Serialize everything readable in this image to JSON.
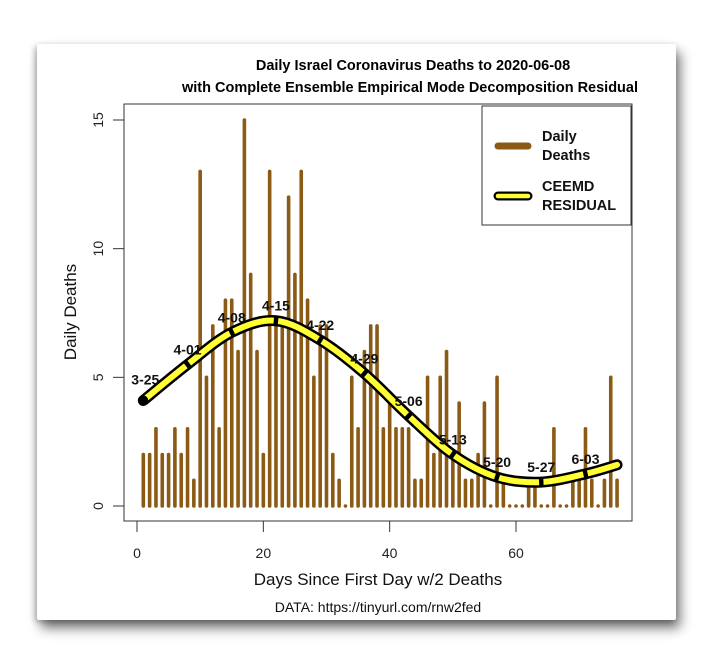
{
  "chart_data": {
    "type": "bar",
    "title": "Daily Israel Coronavirus Deaths to 2020-06-08",
    "subtitle": "with Complete Ensemble Empirical Mode Decomposition Residual",
    "xlabel": "Days Since First Day w/2 Deaths",
    "ylabel": "Daily Deaths",
    "source": "DATA: https://tinyurl.com/rnw2fed",
    "xlim": [
      0,
      78
    ],
    "ylim": [
      0,
      15
    ],
    "x_ticks": [
      0,
      20,
      40,
      60
    ],
    "y_ticks": [
      0,
      5,
      10,
      15
    ],
    "grid": false,
    "legend_position": "top-right",
    "colors": {
      "bars": "#8B5A14",
      "residual_fill": "#FFFF33",
      "residual_outline": "#000000"
    },
    "series": [
      {
        "name": "Daily Deaths",
        "legend_label": [
          "Daily",
          "Deaths"
        ],
        "kind": "bar",
        "x": [
          1,
          2,
          3,
          4,
          5,
          6,
          7,
          8,
          9,
          10,
          11,
          12,
          13,
          14,
          15,
          16,
          17,
          18,
          19,
          20,
          21,
          22,
          23,
          24,
          25,
          26,
          27,
          28,
          29,
          30,
          31,
          32,
          33,
          34,
          35,
          36,
          37,
          38,
          39,
          40,
          41,
          42,
          43,
          44,
          45,
          46,
          47,
          48,
          49,
          50,
          51,
          52,
          53,
          54,
          55,
          56,
          57,
          58,
          59,
          60,
          61,
          62,
          63,
          64,
          65,
          66,
          67,
          68,
          69,
          70,
          71,
          72,
          73,
          74,
          75,
          76
        ],
        "values": [
          2,
          2,
          3,
          2,
          2,
          3,
          2,
          3,
          1,
          13,
          5,
          7,
          3,
          8,
          8,
          6,
          15,
          9,
          6,
          2,
          13,
          7,
          7,
          12,
          9,
          13,
          8,
          5,
          7,
          7,
          2,
          1,
          0,
          5,
          3,
          6,
          7,
          7,
          3,
          4,
          3,
          3,
          3,
          1,
          1,
          5,
          2,
          5,
          6,
          2,
          4,
          1,
          1,
          2,
          4,
          0,
          5,
          1,
          0,
          0,
          0,
          1,
          1,
          0,
          0,
          3,
          0,
          0,
          1,
          1,
          3,
          1,
          0,
          1,
          5,
          1
        ]
      },
      {
        "name": "CEEMD RESIDUAL",
        "legend_label": [
          "CEEMD",
          "RESIDUAL"
        ],
        "kind": "line",
        "x": [
          1,
          8,
          15,
          22,
          29,
          36,
          43,
          50,
          57,
          64,
          71,
          76
        ],
        "values": [
          4.1,
          5.5,
          6.75,
          7.2,
          6.45,
          5.15,
          3.5,
          2.0,
          1.12,
          0.93,
          1.25,
          1.6
        ],
        "point_labels": [
          "3-25",
          "4-01",
          "4-08",
          "4-15",
          "4-22",
          "4-29",
          "5-06",
          "5-13",
          "5-20",
          "5-27",
          "6-03",
          ""
        ]
      }
    ]
  }
}
